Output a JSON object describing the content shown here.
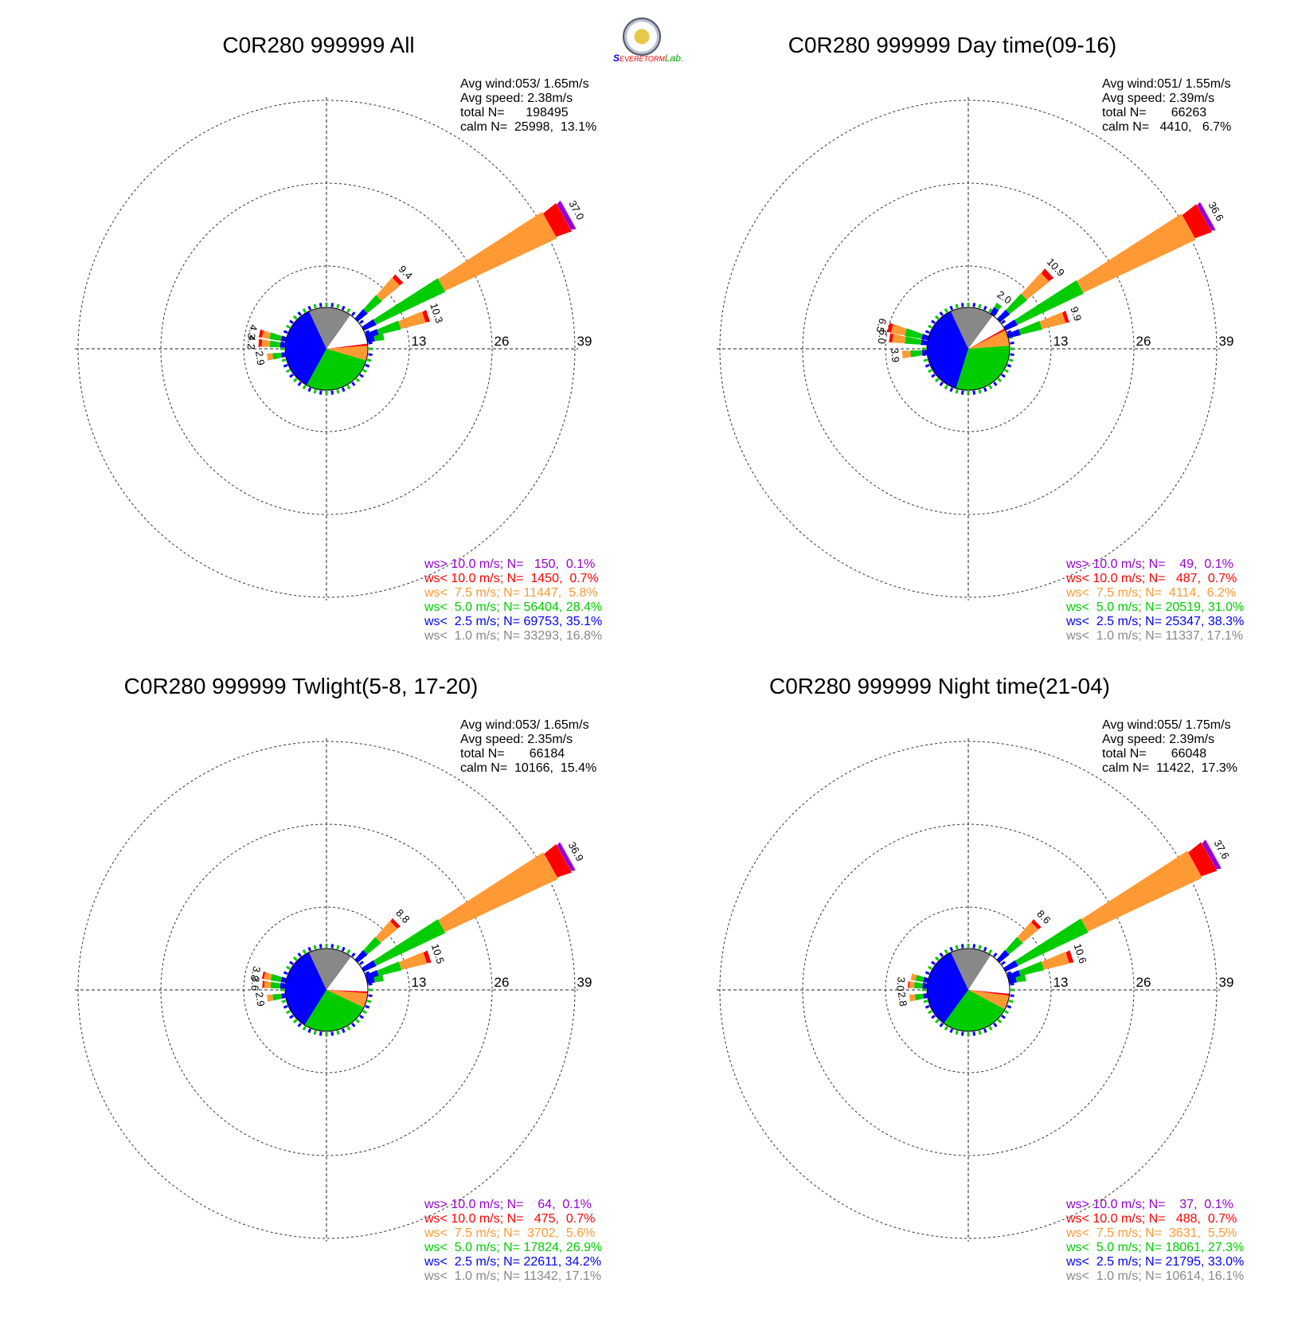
{
  "logo": {
    "text1": "S",
    "text2": "EVERE",
    "text3": "TORM",
    "text4": "Lab."
  },
  "colors": {
    "gt10": "#9400d3",
    "lt10": "#ff0000",
    "lt75": "#ff9933",
    "lt5": "#00cc00",
    "lt25": "#0000ff",
    "lt1": "#888888"
  },
  "chart_data": [
    {
      "type": "windrose",
      "title": "C0R280 999999 All",
      "rlim": [
        0,
        39
      ],
      "rticks": [
        "13",
        "26",
        "39"
      ],
      "stats": [
        "Avg wind:053/ 1.65m/s",
        "Avg speed: 2.38m/s",
        "total N=      198495",
        "calm N=  25998,  13.1%"
      ],
      "legend": [
        {
          "text": "ws> 10.0 m/s; N=   150,  0.1%",
          "color": "#9400d3"
        },
        {
          "text": "ws< 10.0 m/s; N=  1450,  0.7%",
          "color": "#ff0000"
        },
        {
          "text": "ws<  7.5 m/s; N= 11447,  5.8%",
          "color": "#ff9933"
        },
        {
          "text": "ws<  5.0 m/s; N= 56404, 28.4%",
          "color": "#00cc00"
        },
        {
          "text": "ws<  2.5 m/s; N= 69753, 35.1%",
          "color": "#0000ff"
        },
        {
          "text": "ws<  1.0 m/s; N= 33293, 16.8%",
          "color": "#888888"
        }
      ],
      "pie": [
        {
          "name": "ws< 1.0",
          "value": 16.8,
          "color": "#888888"
        },
        {
          "name": "calm",
          "value": 13.1,
          "color": "#ffffff"
        },
        {
          "name": "ws> 10.0",
          "value": 0.1,
          "color": "#9400d3"
        },
        {
          "name": "ws< 10.0",
          "value": 0.7,
          "color": "#ff0000"
        },
        {
          "name": "ws< 7.5",
          "value": 5.8,
          "color": "#ff9933"
        },
        {
          "name": "ws< 5.0",
          "value": 28.4,
          "color": "#00cc00"
        },
        {
          "name": "ws< 2.5",
          "value": 35.1,
          "color": "#0000ff"
        }
      ],
      "petals": [
        {
          "dir": 61,
          "label": "37.0",
          "segments": [
            2.2,
            12.0,
            19.4,
            2.6,
            0.7,
            0.1
          ]
        },
        {
          "dir": 46,
          "label": "9.4",
          "segments": [
            2.0,
            3.0,
            3.7,
            0.7
          ]
        },
        {
          "dir": 72,
          "label": "10.3",
          "segments": [
            2.0,
            3.6,
            4.0,
            0.7
          ]
        },
        {
          "dir": 78,
          "label": "",
          "segments": [
            1.2,
            1.5
          ]
        },
        {
          "dir": 275,
          "label": "4.2",
          "segments": [
            0.8,
            1.6,
            1.3,
            0.5
          ]
        },
        {
          "dir": 283,
          "label": "4.3",
          "segments": [
            0.8,
            1.8,
            1.2,
            0.5
          ]
        },
        {
          "dir": 262,
          "label": "2.9",
          "segments": [
            0.6,
            1.4,
            0.9
          ]
        }
      ]
    },
    {
      "type": "windrose",
      "title": "C0R280 999999 Day time(09-16)",
      "rlim": [
        0,
        39
      ],
      "rticks": [
        "13",
        "26",
        "39"
      ],
      "stats": [
        "Avg wind:051/ 1.55m/s",
        "Avg speed: 2.39m/s",
        "total N=       66263",
        "calm N=   4410,   6.7%"
      ],
      "legend": [
        {
          "text": "ws> 10.0 m/s; N=    49,  0.1%",
          "color": "#9400d3"
        },
        {
          "text": "ws< 10.0 m/s; N=   487,  0.7%",
          "color": "#ff0000"
        },
        {
          "text": "ws<  7.5 m/s; N=  4114,  6.2%",
          "color": "#ff9933"
        },
        {
          "text": "ws<  5.0 m/s; N= 20519, 31.0%",
          "color": "#00cc00"
        },
        {
          "text": "ws<  2.5 m/s; N= 25347, 38.3%",
          "color": "#0000ff"
        },
        {
          "text": "ws<  1.0 m/s; N= 11337, 17.1%",
          "color": "#888888"
        }
      ],
      "pie": [
        {
          "name": "ws< 1.0",
          "value": 17.1,
          "color": "#888888"
        },
        {
          "name": "calm",
          "value": 6.7,
          "color": "#ffffff"
        },
        {
          "name": "ws> 10.0",
          "value": 0.1,
          "color": "#9400d3"
        },
        {
          "name": "ws< 10.0",
          "value": 0.7,
          "color": "#ff0000"
        },
        {
          "name": "ws< 7.5",
          "value": 6.2,
          "color": "#ff9933"
        },
        {
          "name": "ws< 5.0",
          "value": 31.0,
          "color": "#00cc00"
        },
        {
          "name": "ws< 2.5",
          "value": 38.3,
          "color": "#0000ff"
        }
      ],
      "petals": [
        {
          "dir": 61,
          "label": "36.6",
          "segments": [
            2.1,
            11.5,
            19.5,
            2.8,
            0.6,
            0.1
          ]
        },
        {
          "dir": 47,
          "label": "10.9",
          "segments": [
            2.0,
            3.5,
            4.5,
            0.9
          ]
        },
        {
          "dir": 72,
          "label": "9.9",
          "segments": [
            2.0,
            3.5,
            3.8,
            0.6
          ]
        },
        {
          "dir": 35,
          "label": "2.0",
          "segments": [
            1.2,
            0.8
          ]
        },
        {
          "dir": 278,
          "label": "6.0",
          "segments": [
            1.0,
            2.5,
            2.0,
            0.5
          ]
        },
        {
          "dir": 285,
          "label": "6.5",
          "segments": [
            1.0,
            2.7,
            2.2,
            0.6
          ]
        },
        {
          "dir": 265,
          "label": "3.9",
          "segments": [
            0.8,
            1.8,
            1.3
          ]
        }
      ]
    },
    {
      "type": "windrose",
      "title": "C0R280 999999 Twlight(5-8, 17-20)",
      "rlim": [
        0,
        39
      ],
      "rticks": [
        "13",
        "26",
        "39"
      ],
      "stats": [
        "Avg wind:053/ 1.65m/s",
        "Avg speed: 2.35m/s",
        "total N=       66184",
        "calm N=  10166,  15.4%"
      ],
      "legend": [
        {
          "text": "ws> 10.0 m/s; N=    64,  0.1%",
          "color": "#9400d3"
        },
        {
          "text": "ws< 10.0 m/s; N=   475,  0.7%",
          "color": "#ff0000"
        },
        {
          "text": "ws<  7.5 m/s; N=  3702,  5.6%",
          "color": "#ff9933"
        },
        {
          "text": "ws<  5.0 m/s; N= 17824, 26.9%",
          "color": "#00cc00"
        },
        {
          "text": "ws<  2.5 m/s; N= 22611, 34.2%",
          "color": "#0000ff"
        },
        {
          "text": "ws<  1.0 m/s; N= 11342, 17.1%",
          "color": "#888888"
        }
      ],
      "pie": [
        {
          "name": "ws< 1.0",
          "value": 17.1,
          "color": "#888888"
        },
        {
          "name": "calm",
          "value": 15.4,
          "color": "#ffffff"
        },
        {
          "name": "ws> 10.0",
          "value": 0.1,
          "color": "#9400d3"
        },
        {
          "name": "ws< 10.0",
          "value": 0.7,
          "color": "#ff0000"
        },
        {
          "name": "ws< 7.5",
          "value": 5.6,
          "color": "#ff9933"
        },
        {
          "name": "ws< 5.0",
          "value": 26.9,
          "color": "#00cc00"
        },
        {
          "name": "ws< 2.5",
          "value": 34.2,
          "color": "#0000ff"
        }
      ],
      "petals": [
        {
          "dir": 61,
          "label": "36.9",
          "segments": [
            2.2,
            12.0,
            19.6,
            2.4,
            0.6,
            0.1
          ]
        },
        {
          "dir": 46,
          "label": "8.8",
          "segments": [
            2.0,
            2.8,
            3.4,
            0.6
          ]
        },
        {
          "dir": 72,
          "label": "10.5",
          "segments": [
            2.0,
            3.7,
            4.1,
            0.7
          ]
        },
        {
          "dir": 78,
          "label": "",
          "segments": [
            1.2,
            1.4
          ]
        },
        {
          "dir": 275,
          "label": "3.6",
          "segments": [
            0.8,
            1.5,
            1.0,
            0.3
          ]
        },
        {
          "dir": 283,
          "label": "3.8",
          "segments": [
            0.8,
            1.6,
            1.1,
            0.3
          ]
        },
        {
          "dir": 262,
          "label": "2.9",
          "segments": [
            0.6,
            1.4,
            0.9
          ]
        }
      ]
    },
    {
      "type": "windrose",
      "title": "C0R280 999999 Night time(21-04)",
      "rlim": [
        0,
        39
      ],
      "rticks": [
        "13",
        "26",
        "39"
      ],
      "stats": [
        "Avg wind:055/ 1.75m/s",
        "Avg speed: 2.39m/s",
        "total N=       66048",
        "calm N=  11422,  17.3%"
      ],
      "legend": [
        {
          "text": "ws> 10.0 m/s; N=    37,  0.1%",
          "color": "#9400d3"
        },
        {
          "text": "ws< 10.0 m/s; N=   488,  0.7%",
          "color": "#ff0000"
        },
        {
          "text": "ws<  7.5 m/s; N=  3631,  5.5%",
          "color": "#ff9933"
        },
        {
          "text": "ws<  5.0 m/s; N= 18061, 27.3%",
          "color": "#00cc00"
        },
        {
          "text": "ws<  2.5 m/s; N= 21795, 33.0%",
          "color": "#0000ff"
        },
        {
          "text": "ws<  1.0 m/s; N= 10614, 16.1%",
          "color": "#888888"
        }
      ],
      "pie": [
        {
          "name": "ws< 1.0",
          "value": 16.1,
          "color": "#888888"
        },
        {
          "name": "calm",
          "value": 17.3,
          "color": "#ffffff"
        },
        {
          "name": "ws> 10.0",
          "value": 0.1,
          "color": "#9400d3"
        },
        {
          "name": "ws< 10.0",
          "value": 0.7,
          "color": "#ff0000"
        },
        {
          "name": "ws< 7.5",
          "value": 5.5,
          "color": "#ff9933"
        },
        {
          "name": "ws< 5.0",
          "value": 27.3,
          "color": "#00cc00"
        },
        {
          "name": "ws< 2.5",
          "value": 33.0,
          "color": "#0000ff"
        }
      ],
      "petals": [
        {
          "dir": 61,
          "label": "37.6",
          "segments": [
            2.2,
            12.2,
            19.8,
            2.6,
            0.7,
            0.1
          ]
        },
        {
          "dir": 46,
          "label": "8.6",
          "segments": [
            2.0,
            2.8,
            3.2,
            0.6
          ]
        },
        {
          "dir": 72,
          "label": "10.6",
          "segments": [
            2.0,
            3.8,
            4.1,
            0.7
          ]
        },
        {
          "dir": 78,
          "label": "",
          "segments": [
            1.2,
            1.5
          ]
        },
        {
          "dir": 275,
          "label": "3.0",
          "segments": [
            0.7,
            1.3,
            0.8,
            0.2
          ]
        },
        {
          "dir": 283,
          "label": "",
          "segments": [
            0.7,
            1.2,
            0.8
          ]
        },
        {
          "dir": 262,
          "label": "2.8",
          "segments": [
            0.6,
            1.3,
            0.9
          ]
        }
      ]
    }
  ]
}
